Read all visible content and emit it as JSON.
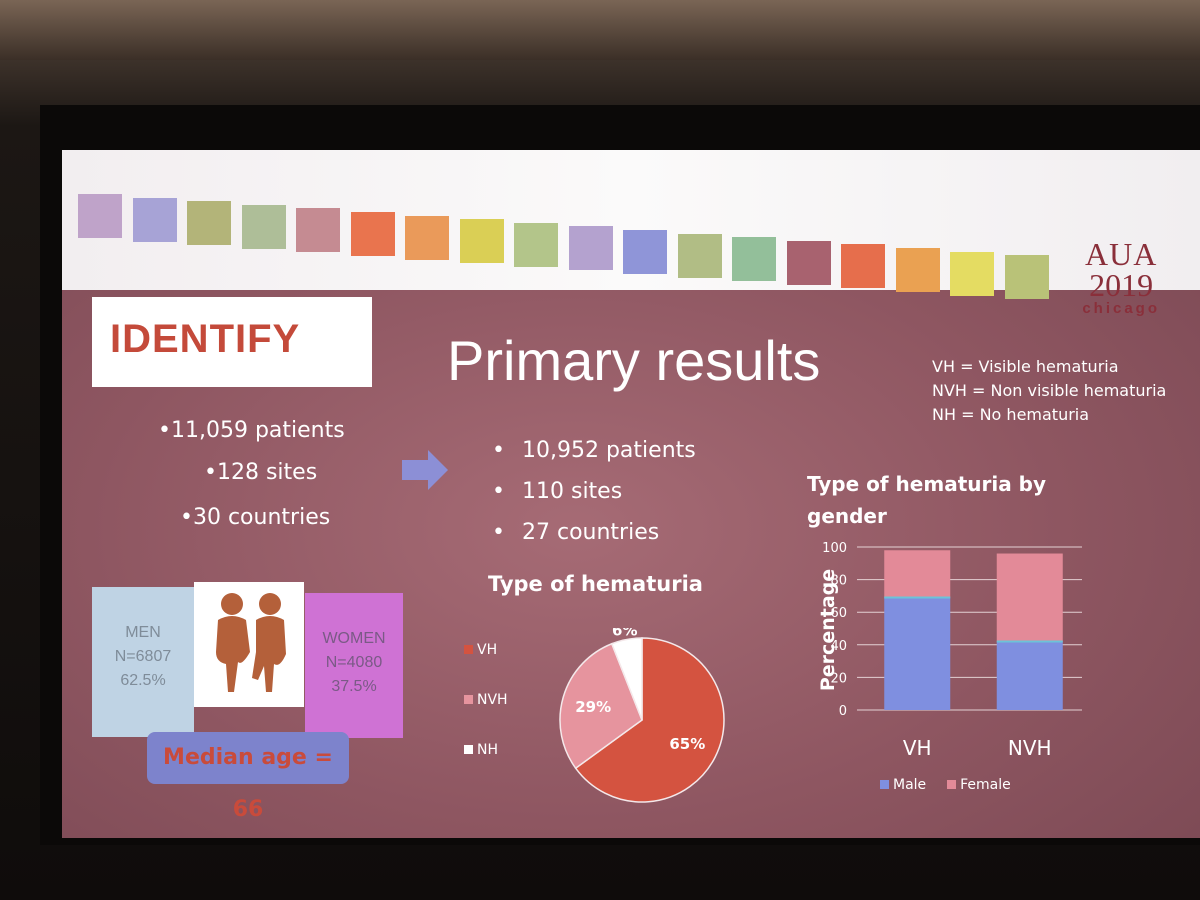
{
  "colors": {
    "slide_bg": "#8e5661",
    "accent_red": "#c94b3b",
    "vh": "#d45340",
    "nvh": "#e6949e",
    "nh": "#ffffff",
    "male": "#7f8fe0",
    "female": "#e38a98"
  },
  "header": {
    "color_squares": [
      "#bfa3c9",
      "#a7a3d6",
      "#b3b479",
      "#aebe98",
      "#c58b92",
      "#e9744e",
      "#ea9a5a",
      "#dacf55",
      "#b3c58a",
      "#b4a2cf",
      "#8f95d8",
      "#b1bd85",
      "#93bf9a",
      "#a8626f",
      "#e66e4c",
      "#eaa152",
      "#e4dc62",
      "#b9c278"
    ],
    "logo": {
      "aua": "AUA",
      "year": "2019",
      "city": "chicago"
    }
  },
  "identify_logo": {
    "text": "IDENТIFY"
  },
  "slide_title": "Primary results",
  "definitions": [
    "VH = Visible hematuria",
    "NVH = Non visible hematuria",
    "NH = No hematuria"
  ],
  "left_stats": [
    "•11,059 patients",
    "•128 sites",
    "•30 countries"
  ],
  "primary_stats": [
    "10,952 patients",
    "110 sites",
    "27 countries"
  ],
  "bullet_char": "•",
  "demographics": {
    "men": {
      "label": "MEN",
      "n": "N=6807",
      "pct": "62.5%"
    },
    "women": {
      "label": "WOMEN",
      "n": "N=4080",
      "pct": "37.5%"
    },
    "median_age": "Median age = 66"
  },
  "chart_data": [
    {
      "type": "pie",
      "title": "Type of hematuria",
      "labels": [
        "VH",
        "NVH",
        "NH"
      ],
      "values": [
        65,
        29,
        6
      ],
      "data_labels": [
        "65%",
        "29%",
        "6%"
      ],
      "legend_position": "left"
    },
    {
      "type": "bar",
      "stacked": true,
      "title": "Type of hematuria by gender",
      "ylabel": "Percentage",
      "categories": [
        "VH",
        "NVH"
      ],
      "series": [
        {
          "name": "Male",
          "values": [
            69,
            42
          ]
        },
        {
          "name": "Female",
          "values": [
            29,
            54
          ]
        }
      ],
      "ylim": [
        0,
        100
      ],
      "yticks": [
        0,
        20,
        40,
        60,
        80,
        100
      ],
      "grid": true,
      "legend_position": "bottom"
    }
  ]
}
